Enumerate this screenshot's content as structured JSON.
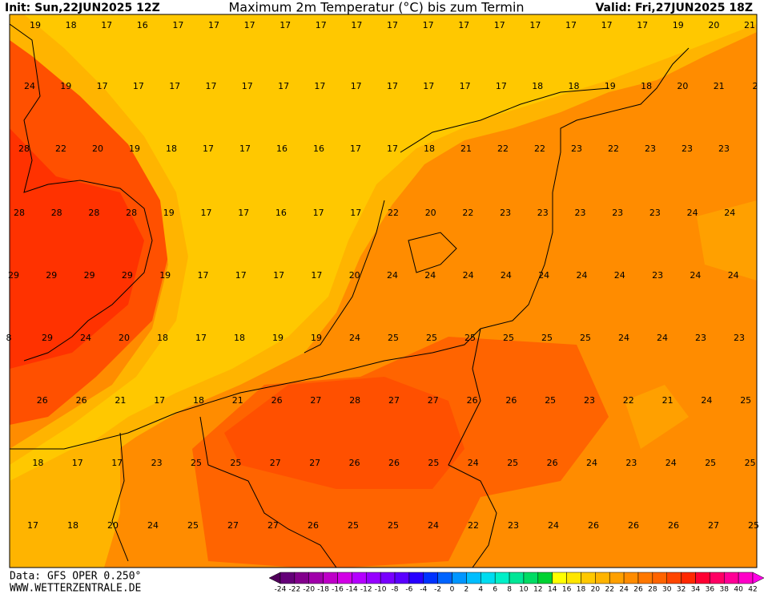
{
  "header": {
    "init": "Init: Sun,22JUN2025 12Z",
    "title": "Maximum 2m Temperatur (°C) bis zum Termin",
    "valid": "Valid: Fri,27JUN2025 18Z"
  },
  "map": {
    "labels": [
      [
        19,
        18,
        17,
        16,
        17,
        17,
        17,
        17,
        17,
        17,
        17,
        17,
        17,
        17,
        17,
        17,
        17,
        17,
        19,
        20,
        21
      ],
      [
        24,
        19,
        17,
        17,
        17,
        17,
        17,
        17,
        17,
        17,
        17,
        17,
        17,
        17,
        18,
        18,
        19,
        18,
        20,
        21,
        2
      ],
      [
        28,
        22,
        20,
        19,
        18,
        17,
        17,
        16,
        16,
        17,
        17,
        18,
        21,
        22,
        22,
        23,
        22,
        23,
        23,
        23
      ],
      [
        28,
        28,
        28,
        28,
        19,
        17,
        17,
        16,
        17,
        17,
        22,
        20,
        22,
        23,
        23,
        23,
        23,
        23,
        24,
        24
      ],
      [
        29,
        29,
        29,
        29,
        19,
        17,
        17,
        17,
        17,
        20,
        24,
        24,
        24,
        24,
        24,
        24,
        24,
        23,
        24,
        24
      ],
      [
        8,
        29,
        24,
        20,
        18,
        17,
        18,
        19,
        19,
        24,
        25,
        25,
        25,
        25,
        25,
        25,
        24,
        24,
        23,
        23
      ],
      [
        null,
        26,
        26,
        21,
        17,
        18,
        21,
        26,
        27,
        28,
        27,
        27,
        26,
        26,
        25,
        23,
        22,
        21,
        24,
        25
      ],
      [
        null,
        18,
        17,
        17,
        23,
        25,
        25,
        27,
        27,
        26,
        26,
        25,
        24,
        25,
        26,
        24,
        23,
        24,
        25,
        25
      ],
      [
        17,
        18,
        20,
        24,
        25,
        27,
        27,
        26,
        25,
        25,
        24,
        22,
        23,
        24,
        26,
        26,
        26,
        27,
        25
      ]
    ]
  },
  "colorbar": {
    "ticks": [
      -24,
      -22,
      -20,
      -18,
      -16,
      -14,
      -12,
      -10,
      -8,
      -6,
      -4,
      -2,
      0,
      2,
      4,
      6,
      8,
      10,
      12,
      14,
      16,
      18,
      20,
      22,
      24,
      26,
      28,
      30,
      32,
      34,
      36,
      38,
      40,
      42
    ],
    "colors": [
      "#50005a",
      "#640078",
      "#82008c",
      "#a000aa",
      "#be00c8",
      "#d200e6",
      "#b400ff",
      "#9600ff",
      "#7800ff",
      "#5a00ff",
      "#2800ff",
      "#0032ff",
      "#0064ff",
      "#0096ff",
      "#00beff",
      "#00dcf0",
      "#00f0c8",
      "#00e696",
      "#00dc64",
      "#00d232",
      "#ffff00",
      "#ffe600",
      "#ffc800",
      "#ffb400",
      "#ffa000",
      "#ff8c00",
      "#ff7800",
      "#ff6400",
      "#ff4600",
      "#ff2800",
      "#ff0032",
      "#ff0064",
      "#ff0096",
      "#ff00c8",
      "#ff00e6"
    ]
  },
  "footer": {
    "data": "Data: GFS OPER 0.250°",
    "site": "WWW.WETTERZENTRALE.DE"
  }
}
